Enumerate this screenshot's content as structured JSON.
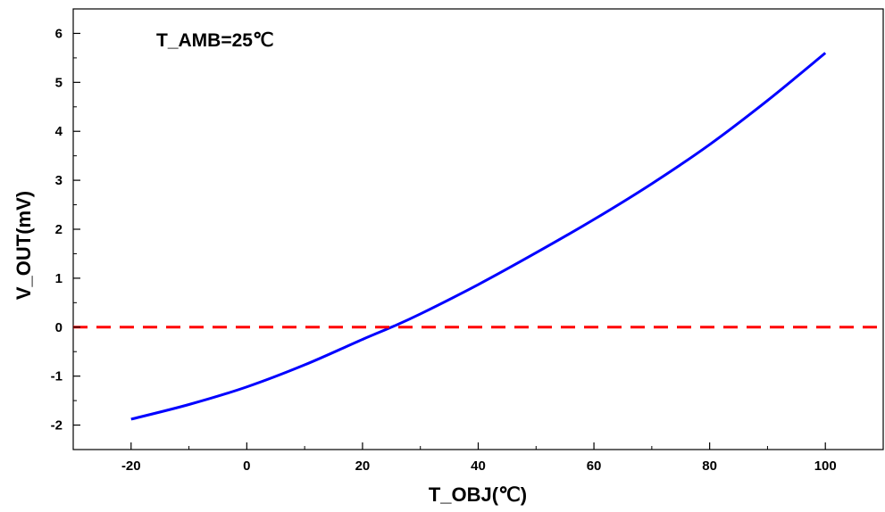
{
  "chart_data": {
    "type": "line",
    "title": "",
    "annotation": "T_AMB=25℃",
    "xlabel": "T_OBJ(℃)",
    "ylabel": "V_OUT(mV)",
    "xlim": [
      -30,
      110
    ],
    "ylim": [
      -2.5,
      6.5
    ],
    "x_ticks": [
      -20,
      0,
      20,
      40,
      60,
      80,
      100
    ],
    "y_ticks": [
      -2,
      -1,
      0,
      1,
      2,
      3,
      4,
      5,
      6
    ],
    "x_tick_labels": [
      "-20",
      "0",
      "20",
      "40",
      "60",
      "80",
      "100"
    ],
    "y_tick_labels": [
      "-2",
      "-1",
      "0",
      "1",
      "2",
      "3",
      "4",
      "5",
      "6"
    ],
    "grid": false,
    "series": [
      {
        "name": "",
        "color": "#0000ff",
        "style": "solid",
        "x": [
          -20,
          -10,
          0,
          10,
          20,
          25,
          30,
          40,
          50,
          60,
          70,
          80,
          90,
          100
        ],
        "values": [
          -1.88,
          -1.58,
          -1.22,
          -0.77,
          -0.25,
          0.0,
          0.27,
          0.87,
          1.52,
          2.2,
          2.93,
          3.73,
          4.63,
          5.6
        ]
      },
      {
        "name": "",
        "color": "#ff0000",
        "style": "dashed",
        "x": [
          -30,
          110
        ],
        "values": [
          0,
          0
        ]
      }
    ]
  }
}
